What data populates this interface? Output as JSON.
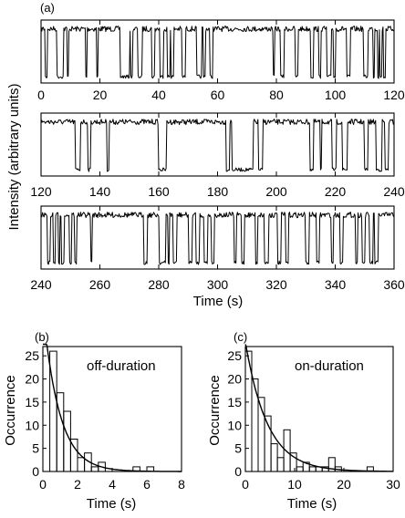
{
  "chart_data": [
    {
      "type": "line",
      "panel_label": "(a)",
      "ylabel": "Intensity (arbitrary units)",
      "xlabel": "Time (s)",
      "rows": [
        {
          "xlim": [
            0,
            120
          ],
          "xticks": [
            "0",
            "20",
            "40",
            "60",
            "80",
            "100",
            "120"
          ],
          "high_level": 1.0,
          "low_level": 0.08,
          "off_intervals": [
            [
              1.3,
              2.2
            ],
            [
              5.5,
              7.5
            ],
            [
              9.0,
              9.4
            ],
            [
              15.2,
              15.7
            ],
            [
              18.8,
              19.3
            ],
            [
              26.8,
              30.0
            ],
            [
              30.3,
              31.2
            ],
            [
              32.9,
              34.3
            ],
            [
              37.6,
              38.6
            ],
            [
              40.5,
              41.5
            ],
            [
              42.8,
              43.8
            ],
            [
              44.2,
              45.1
            ],
            [
              48.0,
              49.0
            ],
            [
              53.0,
              54.5
            ],
            [
              55.1,
              55.8
            ],
            [
              57.3,
              58.4
            ],
            [
              79.0,
              79.4
            ],
            [
              81.3,
              82.5
            ],
            [
              86.5,
              87.4
            ],
            [
              91.6,
              92.5
            ],
            [
              94.3,
              95.2
            ],
            [
              97.1,
              98.6
            ],
            [
              99.3,
              100.0
            ],
            [
              104.0,
              105.1
            ],
            [
              109.6,
              111.1
            ],
            [
              113.0,
              113.4
            ],
            [
              114.4,
              114.8
            ],
            [
              115.2,
              115.8
            ],
            [
              116.4,
              117.0
            ]
          ]
        },
        {
          "xlim": [
            120,
            240
          ],
          "xticks": [
            "120",
            "140",
            "160",
            "180",
            "200",
            "220",
            "240"
          ],
          "high_level": 1.0,
          "low_level": 0.08,
          "off_intervals": [
            [
              131.6,
              133.3
            ],
            [
              135.9,
              136.9
            ],
            [
              142.3,
              143.1
            ],
            [
              159.8,
              162.6
            ],
            [
              182.8,
              184.2
            ],
            [
              185.0,
              192.0
            ],
            [
              194.0,
              195.4
            ],
            [
              211.5,
              212.6
            ],
            [
              214.8,
              215.4
            ],
            [
              219.0,
              220.3
            ],
            [
              222.4,
              224.0
            ],
            [
              229.8,
              231.0
            ],
            [
              233.8,
              235.9
            ],
            [
              237.0,
              238.0
            ]
          ]
        },
        {
          "xlim": [
            240,
            360
          ],
          "xticks": [
            "240",
            "260",
            "280",
            "300",
            "320",
            "340",
            "360"
          ],
          "high_level": 1.0,
          "low_level": 0.08,
          "off_intervals": [
            [
              242.2,
              243.0
            ],
            [
              244.2,
              244.8
            ],
            [
              245.8,
              246.3
            ],
            [
              247.0,
              247.9
            ],
            [
              249.6,
              250.4
            ],
            [
              251.5,
              252.0
            ],
            [
              256.8,
              257.3
            ],
            [
              275.0,
              276.0
            ],
            [
              280.2,
              282.3
            ],
            [
              283.2,
              283.6
            ],
            [
              284.8,
              286.0
            ],
            [
              290.2,
              291.4
            ],
            [
              292.7,
              293.8
            ],
            [
              295.5,
              296.7
            ],
            [
              297.8,
              298.8
            ],
            [
              305.6,
              306.3
            ],
            [
              308.2,
              309.2
            ],
            [
              313.0,
              313.5
            ],
            [
              316.0,
              317.3
            ],
            [
              320.5,
              321.5
            ],
            [
              323.2,
              324.0
            ],
            [
              330.0,
              331.0
            ],
            [
              333.6,
              334.6
            ],
            [
              338.6,
              339.3
            ],
            [
              341.7,
              342.5
            ],
            [
              347.0,
              347.6
            ],
            [
              349.2,
              350.0
            ],
            [
              351.7,
              352.8
            ],
            [
              353.5,
              354.5
            ]
          ]
        }
      ]
    },
    {
      "type": "bar",
      "panel_label": "(b)",
      "annotation": "off-duration",
      "ylabel": "Occurrence",
      "xlabel": "Time (s)",
      "xlim": [
        0,
        8
      ],
      "ylim": [
        0,
        27
      ],
      "xticks": [
        "0",
        "2",
        "4",
        "6",
        "8"
      ],
      "yticks": [
        "0",
        "5",
        "10",
        "15",
        "20",
        "25"
      ],
      "bin_width": 0.4,
      "bin_starts": [
        0.4,
        0.8,
        1.2,
        1.6,
        2.0,
        2.4,
        2.8,
        3.2,
        3.6,
        4.0,
        4.4,
        4.8,
        5.2,
        5.6,
        6.0,
        6.4,
        6.8,
        7.2,
        7.6
      ],
      "values": [
        26,
        17,
        13,
        7,
        3,
        4,
        1,
        2,
        0,
        0,
        0,
        0,
        1,
        0,
        1,
        0,
        0,
        0,
        0
      ],
      "fit": {
        "model": "exponential",
        "amplitude": 35,
        "tau": 0.95
      }
    },
    {
      "type": "bar",
      "panel_label": "(c)",
      "annotation": "on-duration",
      "ylabel": "Occurrence",
      "xlabel": "Time (s)",
      "xlim": [
        0,
        30
      ],
      "ylim": [
        0,
        27
      ],
      "xticks": [
        "0",
        "10",
        "20",
        "30"
      ],
      "yticks": [
        "0",
        "5",
        "10",
        "15",
        "20",
        "25"
      ],
      "bin_width": 1.3,
      "bin_starts": [
        0.0,
        1.3,
        2.6,
        3.9,
        5.2,
        6.5,
        7.8,
        9.1,
        10.4,
        11.7,
        13.0,
        14.3,
        15.6,
        16.9,
        18.2,
        19.5,
        20.8,
        22.1,
        23.4,
        24.7,
        26.0
      ],
      "values": [
        26,
        20,
        16,
        12,
        6,
        3,
        9,
        4,
        1,
        2,
        1,
        1,
        1,
        3,
        1,
        0,
        0,
        0,
        0,
        1,
        0
      ],
      "fit": {
        "model": "exponential",
        "amplitude": 28,
        "tau": 4.5
      }
    }
  ]
}
